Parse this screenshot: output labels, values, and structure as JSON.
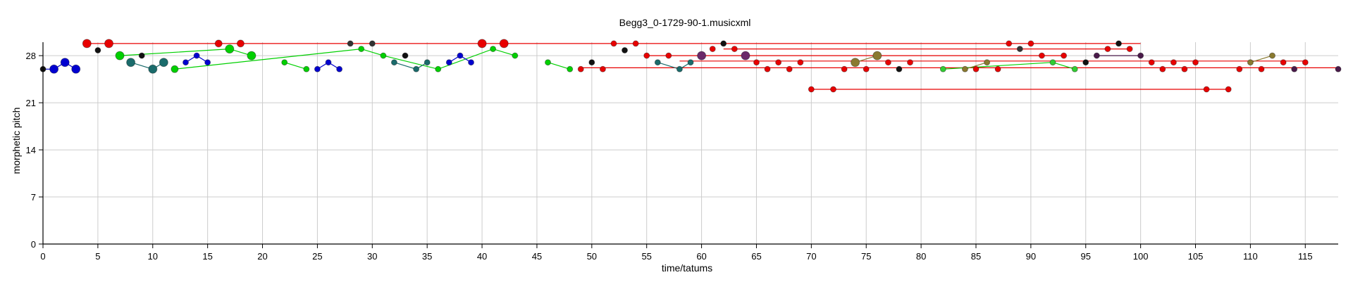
{
  "chart_data": {
    "type": "scatter",
    "title": "Begg3_0-1729-90-1.musicxml",
    "xlabel": "time/tatums",
    "ylabel": "morphetic pitch",
    "xlim": [
      0,
      118
    ],
    "ylim": [
      0,
      30
    ],
    "xticks": [
      0,
      5,
      10,
      15,
      20,
      25,
      30,
      35,
      40,
      45,
      50,
      55,
      60,
      65,
      70,
      75,
      80,
      85,
      90,
      95,
      100,
      105,
      110,
      115
    ],
    "yticks": [
      0,
      7,
      14,
      21,
      28
    ],
    "grid": true,
    "lines": [
      {
        "color": "#e80000",
        "points": [
          [
            4,
            29.8
          ],
          [
            100,
            29.8
          ]
        ]
      },
      {
        "color": "#e80000",
        "points": [
          [
            49,
            26.2
          ],
          [
            118,
            26.2
          ]
        ]
      },
      {
        "color": "#e80000",
        "points": [
          [
            55,
            28.0
          ],
          [
            93,
            28.0
          ]
        ]
      },
      {
        "color": "#e80000",
        "points": [
          [
            58,
            27.2
          ],
          [
            115,
            27.2
          ]
        ]
      },
      {
        "color": "#e80000",
        "points": [
          [
            62,
            29.0
          ],
          [
            99,
            29.0
          ]
        ]
      },
      {
        "color": "#e80000",
        "points": [
          [
            70,
            23.0
          ],
          [
            108,
            23.0
          ]
        ]
      },
      {
        "color": "#00d000",
        "points": [
          [
            7,
            28.0
          ],
          [
            17,
            29.0
          ],
          [
            19,
            28.0
          ]
        ]
      },
      {
        "color": "#00d000",
        "points": [
          [
            12,
            26.0
          ],
          [
            29,
            29.0
          ],
          [
            31,
            28.0
          ],
          [
            36,
            26.0
          ],
          [
            41,
            29.0
          ],
          [
            43,
            28.0
          ]
        ]
      },
      {
        "color": "#00d000",
        "points": [
          [
            22,
            27.0
          ],
          [
            24,
            26.0
          ]
        ]
      },
      {
        "color": "#00d000",
        "points": [
          [
            46,
            27.0
          ],
          [
            48,
            26.0
          ]
        ]
      },
      {
        "color": "#00d000",
        "points": [
          [
            82,
            26.0
          ],
          [
            92,
            27.0
          ],
          [
            94,
            26.0
          ]
        ]
      },
      {
        "color": "#1a6b6b",
        "points": [
          [
            8,
            27.0
          ],
          [
            10,
            26.0
          ],
          [
            11,
            27.0
          ]
        ]
      },
      {
        "color": "#1a6b6b",
        "points": [
          [
            32,
            27.0
          ],
          [
            34,
            26.0
          ],
          [
            35,
            27.0
          ]
        ]
      },
      {
        "color": "#1a6b6b",
        "points": [
          [
            56,
            27.0
          ],
          [
            58,
            26.0
          ],
          [
            59,
            27.0
          ]
        ]
      },
      {
        "color": "#0000d0",
        "points": [
          [
            0,
            26.0
          ],
          [
            1,
            26.0
          ],
          [
            2,
            27.0
          ],
          [
            3,
            26.0
          ]
        ]
      },
      {
        "color": "#0000d0",
        "points": [
          [
            13,
            27.0
          ],
          [
            14,
            28.0
          ],
          [
            15,
            27.0
          ]
        ]
      },
      {
        "color": "#0000d0",
        "points": [
          [
            25,
            26.0
          ],
          [
            26,
            27.0
          ],
          [
            27,
            26.0
          ]
        ]
      },
      {
        "color": "#0000d0",
        "points": [
          [
            37,
            27.0
          ],
          [
            38,
            28.0
          ],
          [
            39,
            27.0
          ]
        ]
      },
      {
        "color": "#8a7a30",
        "points": [
          [
            74,
            27.0
          ],
          [
            76,
            28.0
          ]
        ]
      },
      {
        "color": "#8a7a30",
        "points": [
          [
            86,
            27.0
          ],
          [
            84,
            26.0
          ]
        ]
      },
      {
        "color": "#8a7a30",
        "points": [
          [
            110,
            27.0
          ],
          [
            112,
            28.0
          ]
        ]
      },
      {
        "color": "#4a1a4a",
        "points": [
          [
            96,
            28.0
          ],
          [
            100,
            28.0
          ]
        ]
      }
    ],
    "points": [
      {
        "x": 0,
        "y": 26.0,
        "color": "#111111",
        "r": 4
      },
      {
        "x": 1,
        "y": 26.0,
        "color": "#0000d0",
        "r": 6
      },
      {
        "x": 2,
        "y": 27.0,
        "color": "#0000d0",
        "r": 6
      },
      {
        "x": 3,
        "y": 26.0,
        "color": "#0000d0",
        "r": 6
      },
      {
        "x": 4,
        "y": 29.8,
        "color": "#e80000",
        "r": 6
      },
      {
        "x": 5,
        "y": 28.8,
        "color": "#111111",
        "r": 4
      },
      {
        "x": 6,
        "y": 29.8,
        "color": "#e80000",
        "r": 6
      },
      {
        "x": 7,
        "y": 28.0,
        "color": "#00d000",
        "r": 6
      },
      {
        "x": 8,
        "y": 27.0,
        "color": "#1a6b6b",
        "r": 6
      },
      {
        "x": 9,
        "y": 28.0,
        "color": "#111111",
        "r": 4
      },
      {
        "x": 10,
        "y": 26.0,
        "color": "#1a6b6b",
        "r": 6
      },
      {
        "x": 11,
        "y": 27.0,
        "color": "#1a6b6b",
        "r": 6
      },
      {
        "x": 12,
        "y": 26.0,
        "color": "#00d000",
        "r": 5
      },
      {
        "x": 13,
        "y": 27.0,
        "color": "#0000d0",
        "r": 4
      },
      {
        "x": 14,
        "y": 28.0,
        "color": "#0000d0",
        "r": 4
      },
      {
        "x": 15,
        "y": 27.0,
        "color": "#0000d0",
        "r": 4
      },
      {
        "x": 16,
        "y": 29.8,
        "color": "#e80000",
        "r": 5
      },
      {
        "x": 17,
        "y": 29.0,
        "color": "#00d000",
        "r": 6
      },
      {
        "x": 18,
        "y": 29.8,
        "color": "#e80000",
        "r": 5
      },
      {
        "x": 19,
        "y": 28.0,
        "color": "#00d000",
        "r": 6
      },
      {
        "x": 22,
        "y": 27.0,
        "color": "#00d000",
        "r": 4
      },
      {
        "x": 24,
        "y": 26.0,
        "color": "#00d000",
        "r": 4
      },
      {
        "x": 25,
        "y": 26.0,
        "color": "#0000d0",
        "r": 4
      },
      {
        "x": 26,
        "y": 27.0,
        "color": "#0000d0",
        "r": 4
      },
      {
        "x": 27,
        "y": 26.0,
        "color": "#0000d0",
        "r": 4
      },
      {
        "x": 28,
        "y": 29.8,
        "color": "#333333",
        "r": 4
      },
      {
        "x": 29,
        "y": 29.0,
        "color": "#00d000",
        "r": 4
      },
      {
        "x": 30,
        "y": 29.8,
        "color": "#333333",
        "r": 4
      },
      {
        "x": 31,
        "y": 28.0,
        "color": "#00d000",
        "r": 4
      },
      {
        "x": 32,
        "y": 27.0,
        "color": "#1a6b6b",
        "r": 4
      },
      {
        "x": 33,
        "y": 28.0,
        "color": "#111111",
        "r": 4
      },
      {
        "x": 34,
        "y": 26.0,
        "color": "#1a6b6b",
        "r": 4
      },
      {
        "x": 35,
        "y": 27.0,
        "color": "#1a6b6b",
        "r": 4
      },
      {
        "x": 36,
        "y": 26.0,
        "color": "#00d000",
        "r": 4
      },
      {
        "x": 37,
        "y": 27.0,
        "color": "#0000d0",
        "r": 4
      },
      {
        "x": 38,
        "y": 28.0,
        "color": "#0000d0",
        "r": 4
      },
      {
        "x": 39,
        "y": 27.0,
        "color": "#0000d0",
        "r": 4
      },
      {
        "x": 40,
        "y": 29.8,
        "color": "#e80000",
        "r": 6
      },
      {
        "x": 41,
        "y": 29.0,
        "color": "#00d000",
        "r": 4
      },
      {
        "x": 42,
        "y": 29.8,
        "color": "#e80000",
        "r": 6
      },
      {
        "x": 43,
        "y": 28.0,
        "color": "#00d000",
        "r": 4
      },
      {
        "x": 46,
        "y": 27.0,
        "color": "#00d000",
        "r": 4
      },
      {
        "x": 48,
        "y": 26.0,
        "color": "#00d000",
        "r": 4
      },
      {
        "x": 49,
        "y": 26.0,
        "color": "#e80000",
        "r": 4
      },
      {
        "x": 50,
        "y": 27.0,
        "color": "#111111",
        "r": 4
      },
      {
        "x": 51,
        "y": 26.0,
        "color": "#e80000",
        "r": 4
      },
      {
        "x": 52,
        "y": 29.8,
        "color": "#e80000",
        "r": 4
      },
      {
        "x": 53,
        "y": 28.8,
        "color": "#111111",
        "r": 4
      },
      {
        "x": 54,
        "y": 29.8,
        "color": "#e80000",
        "r": 4
      },
      {
        "x": 55,
        "y": 28.0,
        "color": "#e80000",
        "r": 4
      },
      {
        "x": 56,
        "y": 27.0,
        "color": "#1a6b6b",
        "r": 4
      },
      {
        "x": 57,
        "y": 28.0,
        "color": "#e80000",
        "r": 4
      },
      {
        "x": 58,
        "y": 26.0,
        "color": "#1a6b6b",
        "r": 4
      },
      {
        "x": 59,
        "y": 27.0,
        "color": "#1a6b6b",
        "r": 4
      },
      {
        "x": 60,
        "y": 28.0,
        "color": "#6a2a6a",
        "r": 6
      },
      {
        "x": 61,
        "y": 29.0,
        "color": "#e80000",
        "r": 4
      },
      {
        "x": 62,
        "y": 29.8,
        "color": "#111111",
        "r": 4
      },
      {
        "x": 63,
        "y": 29.0,
        "color": "#e80000",
        "r": 4
      },
      {
        "x": 64,
        "y": 28.0,
        "color": "#6a2a6a",
        "r": 6
      },
      {
        "x": 65,
        "y": 27.0,
        "color": "#e80000",
        "r": 4
      },
      {
        "x": 66,
        "y": 26.0,
        "color": "#e80000",
        "r": 4
      },
      {
        "x": 67,
        "y": 27.0,
        "color": "#e80000",
        "r": 4
      },
      {
        "x": 68,
        "y": 26.0,
        "color": "#e80000",
        "r": 4
      },
      {
        "x": 69,
        "y": 27.0,
        "color": "#e80000",
        "r": 4
      },
      {
        "x": 70,
        "y": 23.0,
        "color": "#e80000",
        "r": 4
      },
      {
        "x": 72,
        "y": 23.0,
        "color": "#e80000",
        "r": 4
      },
      {
        "x": 73,
        "y": 26.0,
        "color": "#e80000",
        "r": 4
      },
      {
        "x": 74,
        "y": 27.0,
        "color": "#8a7a30",
        "r": 6
      },
      {
        "x": 75,
        "y": 26.0,
        "color": "#e80000",
        "r": 4
      },
      {
        "x": 76,
        "y": 28.0,
        "color": "#8a7a30",
        "r": 6
      },
      {
        "x": 77,
        "y": 27.0,
        "color": "#e80000",
        "r": 4
      },
      {
        "x": 78,
        "y": 26.0,
        "color": "#111111",
        "r": 4
      },
      {
        "x": 79,
        "y": 27.0,
        "color": "#e80000",
        "r": 4
      },
      {
        "x": 82,
        "y": 26.0,
        "color": "#33cc33",
        "r": 4
      },
      {
        "x": 84,
        "y": 26.0,
        "color": "#8a7a30",
        "r": 4
      },
      {
        "x": 85,
        "y": 26.0,
        "color": "#e80000",
        "r": 4
      },
      {
        "x": 86,
        "y": 27.0,
        "color": "#8a7a30",
        "r": 4
      },
      {
        "x": 87,
        "y": 26.0,
        "color": "#e80000",
        "r": 4
      },
      {
        "x": 88,
        "y": 29.8,
        "color": "#e80000",
        "r": 4
      },
      {
        "x": 89,
        "y": 29.0,
        "color": "#333333",
        "r": 4
      },
      {
        "x": 90,
        "y": 29.8,
        "color": "#e80000",
        "r": 4
      },
      {
        "x": 91,
        "y": 28.0,
        "color": "#e80000",
        "r": 4
      },
      {
        "x": 92,
        "y": 27.0,
        "color": "#33cc33",
        "r": 4
      },
      {
        "x": 93,
        "y": 28.0,
        "color": "#e80000",
        "r": 4
      },
      {
        "x": 94,
        "y": 26.0,
        "color": "#33cc33",
        "r": 4
      },
      {
        "x": 95,
        "y": 27.0,
        "color": "#111111",
        "r": 4
      },
      {
        "x": 96,
        "y": 28.0,
        "color": "#4a1a4a",
        "r": 4
      },
      {
        "x": 97,
        "y": 29.0,
        "color": "#e80000",
        "r": 4
      },
      {
        "x": 98,
        "y": 29.8,
        "color": "#111111",
        "r": 4
      },
      {
        "x": 99,
        "y": 29.0,
        "color": "#e80000",
        "r": 4
      },
      {
        "x": 100,
        "y": 28.0,
        "color": "#4a1a4a",
        "r": 4
      },
      {
        "x": 101,
        "y": 27.0,
        "color": "#e80000",
        "r": 4
      },
      {
        "x": 102,
        "y": 26.0,
        "color": "#e80000",
        "r": 4
      },
      {
        "x": 103,
        "y": 27.0,
        "color": "#e80000",
        "r": 4
      },
      {
        "x": 104,
        "y": 26.0,
        "color": "#e80000",
        "r": 4
      },
      {
        "x": 105,
        "y": 27.0,
        "color": "#e80000",
        "r": 4
      },
      {
        "x": 106,
        "y": 23.0,
        "color": "#e80000",
        "r": 4
      },
      {
        "x": 108,
        "y": 23.0,
        "color": "#e80000",
        "r": 4
      },
      {
        "x": 109,
        "y": 26.0,
        "color": "#e80000",
        "r": 4
      },
      {
        "x": 110,
        "y": 27.0,
        "color": "#8a7a30",
        "r": 4
      },
      {
        "x": 111,
        "y": 26.0,
        "color": "#e80000",
        "r": 4
      },
      {
        "x": 112,
        "y": 28.0,
        "color": "#8a7a30",
        "r": 4
      },
      {
        "x": 113,
        "y": 27.0,
        "color": "#e80000",
        "r": 4
      },
      {
        "x": 114,
        "y": 26.0,
        "color": "#4a1a4a",
        "r": 4
      },
      {
        "x": 115,
        "y": 27.0,
        "color": "#e80000",
        "r": 4
      },
      {
        "x": 118,
        "y": 26.0,
        "color": "#4a1a4a",
        "r": 4
      }
    ]
  }
}
